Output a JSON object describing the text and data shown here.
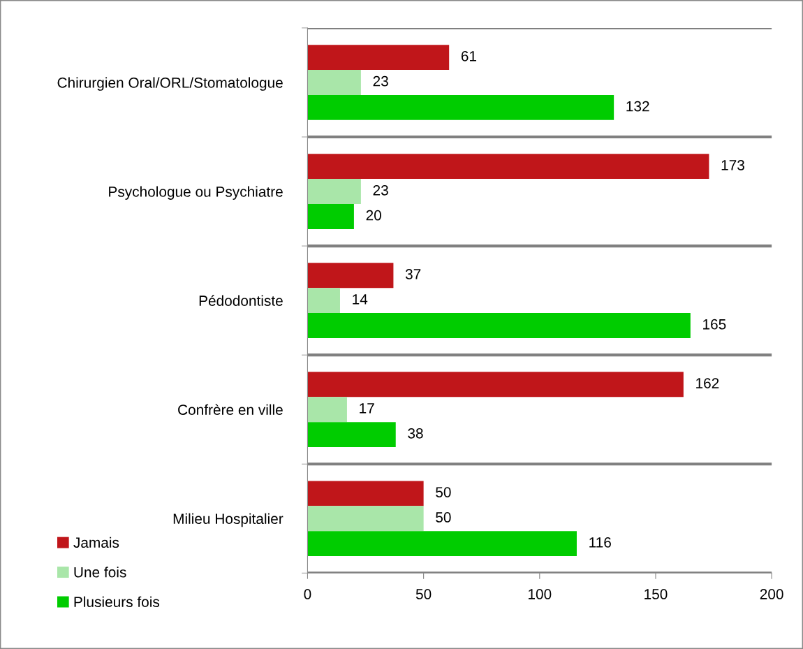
{
  "chart_data": {
    "type": "bar",
    "orientation": "horizontal",
    "categories": [
      "Chirurgien Oral/ORL/Stomatologue",
      "Psychologue ou Psychiatre",
      "Pédodontiste",
      "Confrère en ville",
      "Milieu Hospitalier"
    ],
    "series": [
      {
        "name": "Jamais",
        "color": "#c0161a",
        "values": [
          61,
          173,
          37,
          162,
          50
        ]
      },
      {
        "name": "Une fois",
        "color": "#a9e6a9",
        "values": [
          23,
          23,
          14,
          17,
          50
        ]
      },
      {
        "name": "Plusieurs fois",
        "color": "#00cc00",
        "values": [
          132,
          20,
          165,
          38,
          116
        ]
      }
    ],
    "xlim": [
      0,
      200
    ],
    "xticks": [
      0,
      50,
      100,
      150,
      200
    ],
    "grid": "y",
    "legend": "bottom left",
    "data_labels": true
  }
}
